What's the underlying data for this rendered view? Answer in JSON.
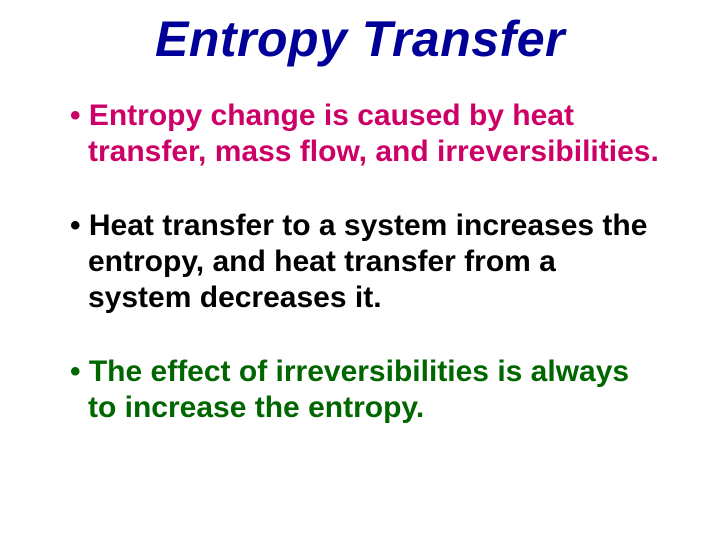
{
  "title": {
    "text": "Entropy Transfer",
    "color": "#000099",
    "fontsize": 50
  },
  "bullets": [
    {
      "text": "Entropy change is caused by heat transfer, mass flow, and irreversibilities.",
      "color": "#cc0066",
      "fontsize": 30
    },
    {
      "text": "Heat transfer to a system increases the entropy, and heat transfer from a system decreases it.",
      "color": "#000000",
      "fontsize": 30
    },
    {
      "text": "The effect of irreversibilities is always to increase the entropy.",
      "color": "#006600",
      "fontsize": 30
    }
  ]
}
